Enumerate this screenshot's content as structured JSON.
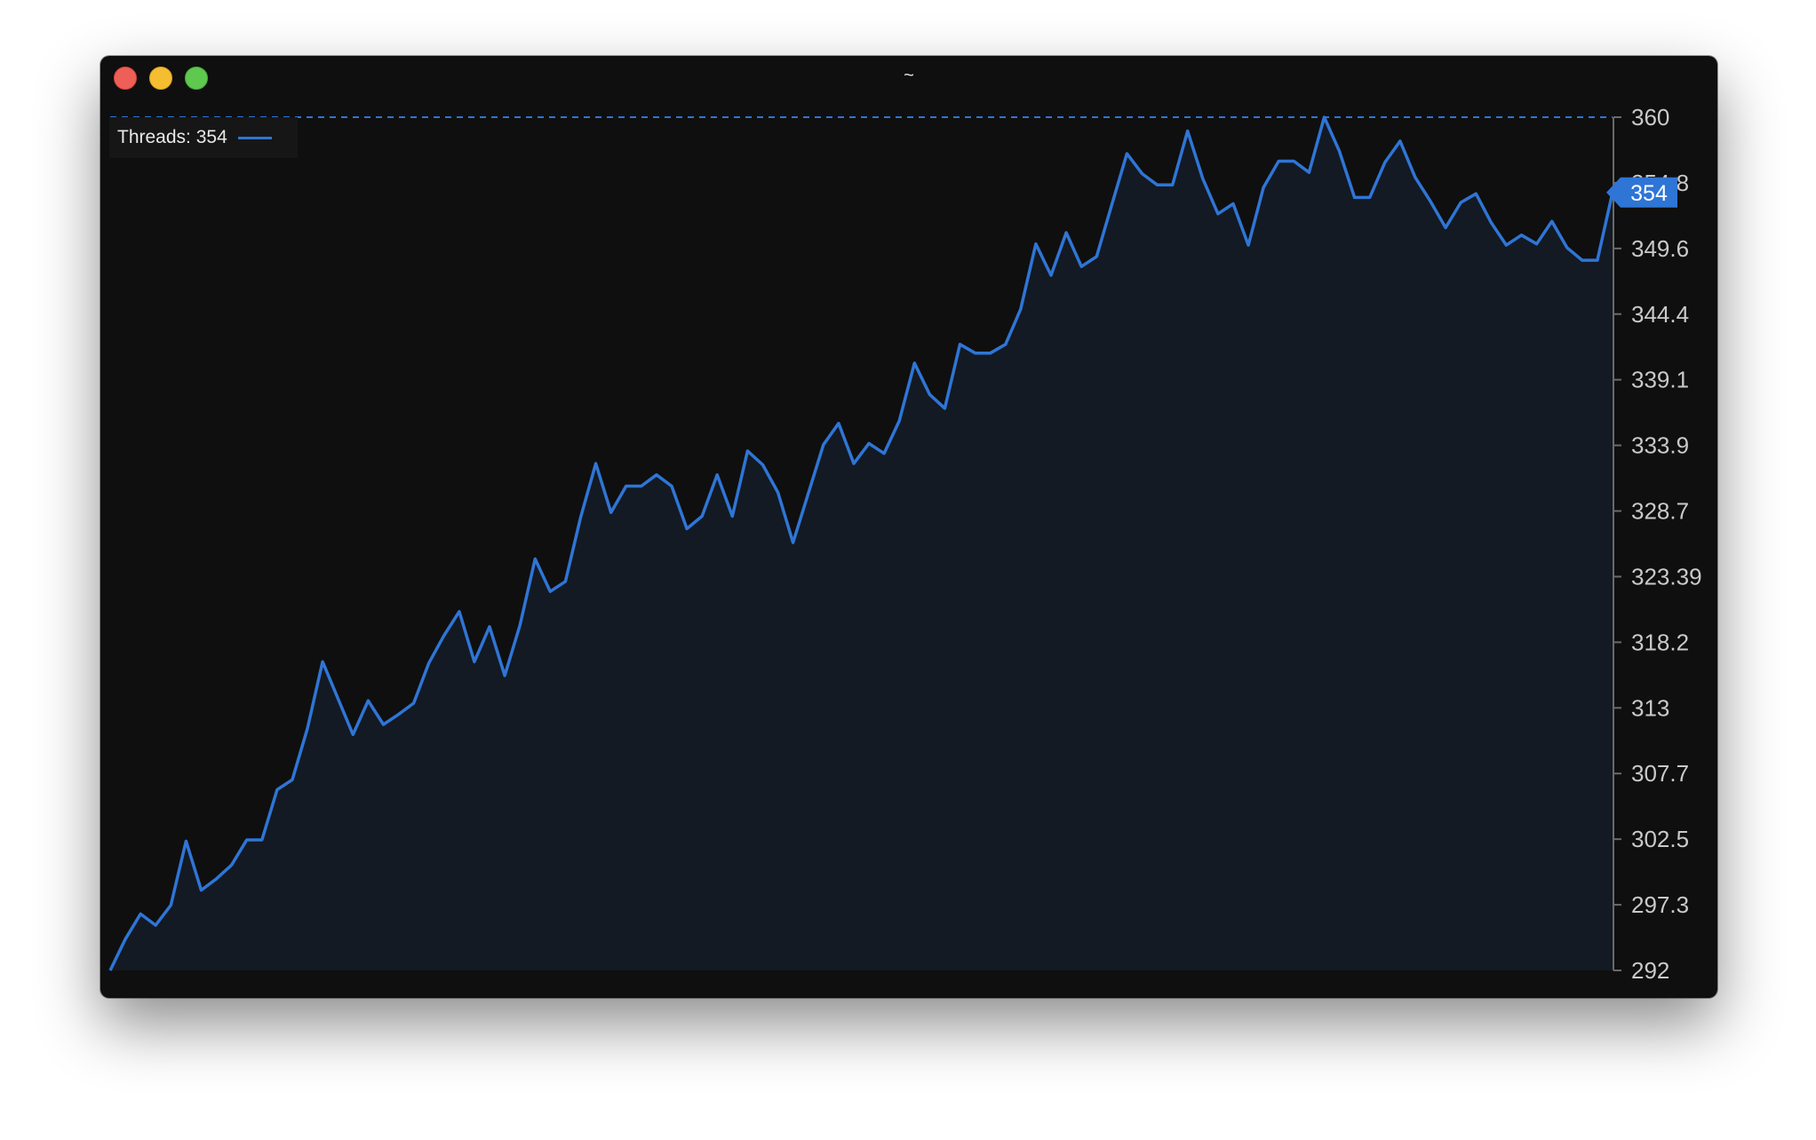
{
  "window": {
    "title": "~"
  },
  "legend": {
    "label": "Threads: 354",
    "color": "#2f75d6"
  },
  "colors": {
    "background": "#0f0f0f",
    "line": "#2f75d6",
    "area": "#131a23",
    "axis": "#6a6a6a",
    "tick_text": "#c9c9c9",
    "badge": "#2f75d6"
  },
  "chart_data": {
    "type": "area",
    "series": [
      {
        "name": "Threads",
        "values": [
          292,
          294.5,
          296.5,
          295.6,
          297.2,
          302.3,
          298.4,
          299.3,
          300.4,
          302.4,
          302.4,
          306.4,
          307.2,
          311.3,
          316.6,
          313.7,
          310.8,
          313.5,
          311.6,
          312.4,
          313.3,
          316.5,
          318.7,
          320.6,
          316.6,
          319.4,
          315.5,
          319.5,
          324.8,
          322.2,
          323.0,
          328.1,
          332.4,
          328.5,
          330.6,
          330.6,
          331.5,
          330.6,
          327.2,
          328.2,
          331.5,
          328.2,
          333.4,
          332.3,
          330.1,
          326.1,
          330.0,
          333.9,
          335.6,
          332.4,
          334.0,
          333.2,
          335.8,
          340.4,
          337.9,
          336.8,
          341.9,
          341.2,
          341.2,
          341.9,
          344.7,
          349.9,
          347.4,
          350.8,
          348.1,
          348.9,
          353.0,
          357.1,
          355.5,
          354.6,
          354.6,
          358.9,
          355.1,
          352.3,
          353.1,
          349.8,
          354.4,
          356.5,
          356.5,
          355.6,
          360.0,
          357.3,
          353.6,
          353.6,
          356.4,
          358.1,
          355.2,
          353.3,
          351.2,
          353.2,
          353.9,
          351.6,
          349.8,
          350.6,
          349.9,
          351.7,
          349.6,
          348.6,
          348.6,
          354.0
        ]
      }
    ],
    "current_value": "354",
    "ylim": [
      292,
      360
    ],
    "y_ticks": [
      "360",
      "354.8",
      "349.6",
      "344.4",
      "339.1",
      "333.9",
      "328.7",
      "323.39",
      "318.2",
      "313",
      "307.7",
      "302.5",
      "297.3",
      "292"
    ],
    "max_reference_line": 360,
    "xlabel": "",
    "ylabel": "",
    "grid": false,
    "legend_position": "top-left"
  }
}
